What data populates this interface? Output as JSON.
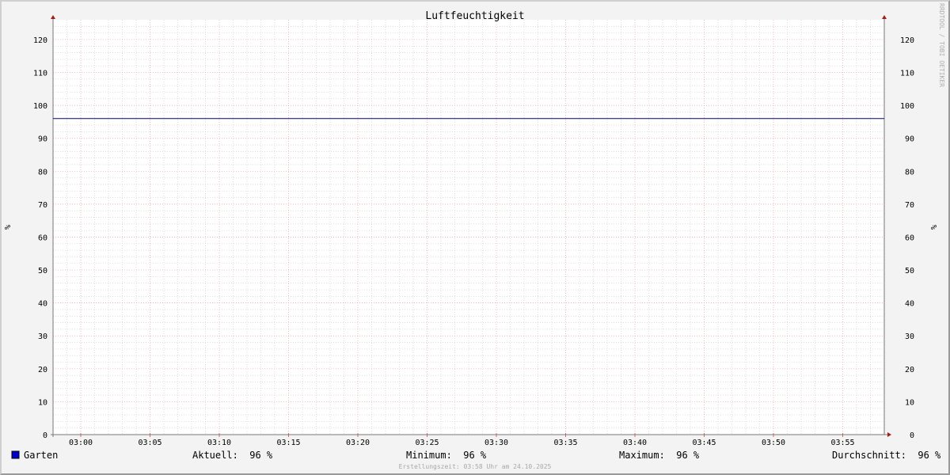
{
  "chart_data": {
    "type": "line",
    "title": "Luftfeuchtigkeit",
    "ylabel": "%",
    "ylabel_right": "%",
    "watermark": "RRDTOOL / TOBI OETIKER",
    "x_ticks": [
      "03:00",
      "03:05",
      "03:10",
      "03:15",
      "03:20",
      "03:25",
      "03:30",
      "03:35",
      "03:40",
      "03:45",
      "03:50",
      "03:55"
    ],
    "xlim": [
      "02:58",
      "03:58"
    ],
    "y_ticks": [
      0,
      10,
      20,
      30,
      40,
      50,
      60,
      70,
      80,
      90,
      100,
      110,
      120
    ],
    "ylim": [
      0,
      126
    ],
    "grid": true,
    "series": [
      {
        "name": "Garten",
        "color": "#0000cc",
        "line_color": "#000080",
        "x": [
          "02:58",
          "03:58"
        ],
        "values": [
          96,
          96
        ]
      }
    ],
    "legend": {
      "position": "bottom",
      "name": "Garten",
      "aktuell": "Aktuell:  96 %",
      "minimum": "Minimum:  96 %",
      "maximum": "Maximum:  96 %",
      "durchschnitt": "Durchschnitt:  96 %"
    },
    "footer": "Erstellungszeit: 03:58 Uhr am 24.10.2025"
  }
}
